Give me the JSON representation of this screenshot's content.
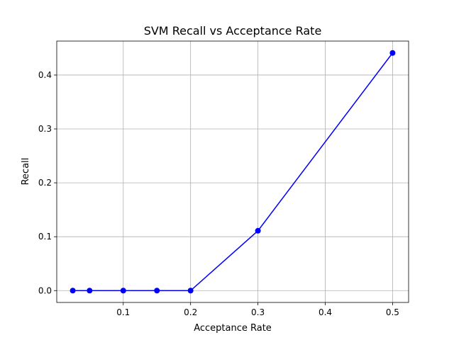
{
  "chart_data": {
    "type": "line",
    "title": "SVM Recall vs Acceptance Rate",
    "xlabel": "Acceptance Rate",
    "ylabel": "Recall",
    "xlim": [
      0.0012,
      0.5238
    ],
    "ylim": [
      -0.022,
      0.463
    ],
    "xticks": [
      0.1,
      0.2,
      0.3,
      0.4,
      0.5
    ],
    "xtick_labels": [
      "0.1",
      "0.2",
      "0.3",
      "0.4",
      "0.5"
    ],
    "yticks": [
      0.0,
      0.1,
      0.2,
      0.3,
      0.4
    ],
    "ytick_labels": [
      "0.0",
      "0.1",
      "0.2",
      "0.3",
      "0.4"
    ],
    "grid": true,
    "series": [
      {
        "color": "#0000ff",
        "marker": "circle",
        "x": [
          0.025,
          0.05,
          0.1,
          0.15,
          0.2,
          0.3,
          0.5
        ],
        "y": [
          0.0,
          0.0,
          0.0,
          0.0,
          0.0,
          0.111,
          0.441
        ]
      }
    ]
  }
}
